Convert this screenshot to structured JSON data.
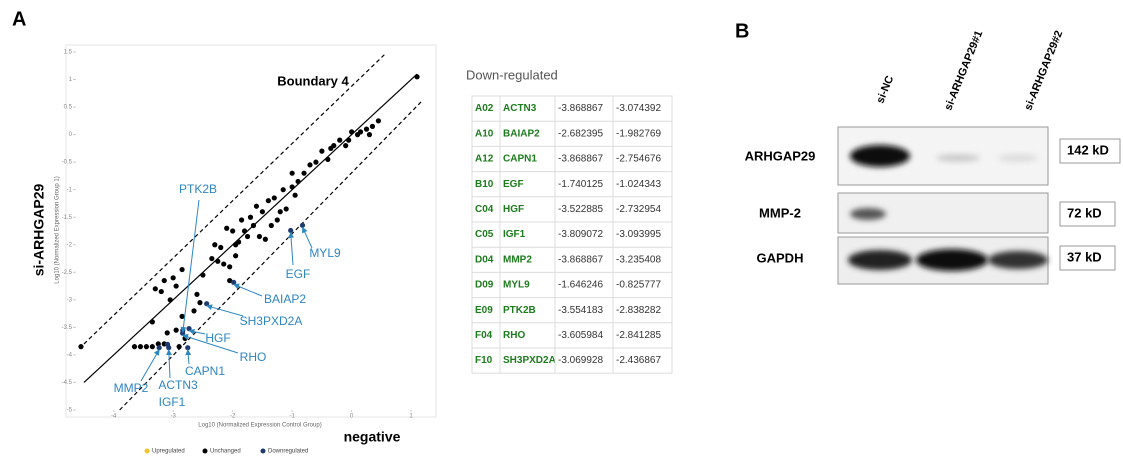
{
  "panels": [
    "A",
    "B"
  ],
  "chart_data": {
    "type": "scatter",
    "title": "Boundary 4",
    "xlabel": "Log10 (Normalized Expression Control Group)",
    "ylabel": "Log10 (Normalized Expression Group 1)",
    "ylabel_big": "si-ARHGAP29",
    "xlabel_big": "negative",
    "xlim": [
      -4.6,
      1.2
    ],
    "ylim": [
      -5,
      1.5
    ],
    "xticks": [
      -4,
      -3,
      -2,
      -1,
      0,
      1
    ],
    "yticks": [
      1.5,
      1,
      0.5,
      0,
      -0.5,
      -1,
      -1.5,
      -2,
      -2.5,
      -3,
      -3.5,
      -4,
      -4.5,
      -5
    ],
    "lines": [
      {
        "style": "solid",
        "x": [
          -4.5,
          1.1
        ],
        "y": [
          -4.5,
          1.1
        ]
      },
      {
        "style": "dashed",
        "x": [
          -4.5,
          0.55
        ],
        "y": [
          -3.8,
          1.45
        ]
      },
      {
        "style": "dashed",
        "x": [
          -3.9,
          1.2
        ],
        "y": [
          -5,
          0.63
        ]
      }
    ],
    "series": [
      {
        "name": "Upregulated",
        "color": "#f2c12e",
        "x": [],
        "y": []
      },
      {
        "name": "Unchanged",
        "color": "#000000",
        "x": [
          -4.55,
          -3.65,
          -3.55,
          -3.45,
          -3.35,
          -3.25,
          -3.15,
          -3.35,
          -3.1,
          -2.95,
          -2.9,
          -2.8,
          -2.85,
          -2.65,
          -2.55,
          -2.6,
          -3.3,
          -3.15,
          -3.2,
          -3.0,
          -3.05,
          -2.95,
          -2.85,
          -2.5,
          -2.35,
          -2.25,
          -2.2,
          -2.15,
          -2.05,
          -1.95,
          -1.9,
          -1.8,
          -1.7,
          -1.6,
          -1.5,
          -1.4,
          -1.3,
          -1.2,
          -1.15,
          -1.0,
          -0.9,
          -0.8,
          -0.7,
          -0.6,
          -0.5,
          -0.4,
          -0.3,
          -0.2,
          -0.1,
          -0.05,
          0.0,
          0.1,
          0.15,
          0.25,
          0.3,
          0.35,
          0.45,
          1.1,
          -2.0,
          -1.85,
          -1.75,
          -1.65,
          -1.55,
          -1.45,
          -1.35,
          -1.25,
          -1.1,
          -0.95,
          -1.0,
          -0.35,
          -2.05,
          -1.95,
          -2.1,
          -2.3
        ],
        "y": [
          -3.85,
          -3.85,
          -3.85,
          -3.85,
          -3.85,
          -3.8,
          -3.8,
          -3.4,
          -3.6,
          -3.55,
          -3.85,
          -3.7,
          -3.3,
          -3.2,
          -3.05,
          -2.9,
          -2.8,
          -2.65,
          -2.85,
          -2.6,
          -3.0,
          -2.75,
          -2.45,
          -2.55,
          -2.25,
          -2.3,
          -2.05,
          -2.35,
          -2.4,
          -2.2,
          -1.95,
          -1.75,
          -1.5,
          -1.3,
          -1.4,
          -1.2,
          -1.15,
          -1.4,
          -1.0,
          -0.95,
          -0.85,
          -0.7,
          -0.55,
          -0.5,
          -0.3,
          -0.45,
          -0.2,
          -0.1,
          -0.2,
          -0.1,
          0.05,
          0.0,
          0.05,
          0.1,
          0.0,
          0.15,
          0.25,
          1.05,
          -1.75,
          -1.55,
          -1.85,
          -1.65,
          -1.85,
          -1.9,
          -1.65,
          -1.55,
          -1.35,
          -1.1,
          -0.7,
          -0.25,
          -2.65,
          -2.0,
          -1.7,
          -2.0
        ]
      },
      {
        "name": "Downregulated",
        "color": "#1f3a6e",
        "x": [
          -3.074392,
          -1.982769,
          -2.754676,
          -1.024343,
          -2.732954,
          -3.093995,
          -3.235408,
          -0.825777,
          -2.838282,
          -2.841285,
          -2.436867
        ],
        "y": [
          -3.868867,
          -2.682395,
          -3.868867,
          -1.740125,
          -3.522885,
          -3.809072,
          -3.868867,
          -1.646246,
          -3.554183,
          -3.605984,
          -3.069928
        ]
      }
    ],
    "annotations": [
      "PTK2B",
      "MYL9",
      "EGF",
      "BAIAP2",
      "SH3PXD2A",
      "HGF",
      "RHO",
      "CAPN1",
      "MMP2",
      "ACTN3",
      "IGF1"
    ]
  },
  "table": {
    "title": "Down-regulated",
    "rows": [
      [
        "A02",
        "ACTN3",
        "-3.868867",
        "-3.074392"
      ],
      [
        "A10",
        "BAIAP2",
        "-2.682395",
        "-1.982769"
      ],
      [
        "A12",
        "CAPN1",
        "-3.868867",
        "-2.754676"
      ],
      [
        "B10",
        "EGF",
        "-1.740125",
        "-1.024343"
      ],
      [
        "C04",
        "HGF",
        "-3.522885",
        "-2.732954"
      ],
      [
        "C05",
        "IGF1",
        "-3.809072",
        "-3.093995"
      ],
      [
        "D04",
        "MMP2",
        "-3.868867",
        "-3.235408"
      ],
      [
        "D09",
        "MYL9",
        "-1.646246",
        "-0.825777"
      ],
      [
        "E09",
        "PTK2B",
        "-3.554183",
        "-2.838282"
      ],
      [
        "F04",
        "RHO",
        "-3.605984",
        "-2.841285"
      ],
      [
        "F10",
        "SH3PXD2A",
        "-3.069928",
        "-2.436867"
      ]
    ]
  },
  "blot": {
    "lanes": [
      "si-NC",
      "si-ARHGAP29#1",
      "si-ARHGAP29#2"
    ],
    "rows": [
      {
        "label": "ARHGAP29",
        "size": "142 kD"
      },
      {
        "label": "MMP-2",
        "size": "72 kD"
      },
      {
        "label": "GAPDH",
        "size": "37 kD"
      }
    ]
  }
}
